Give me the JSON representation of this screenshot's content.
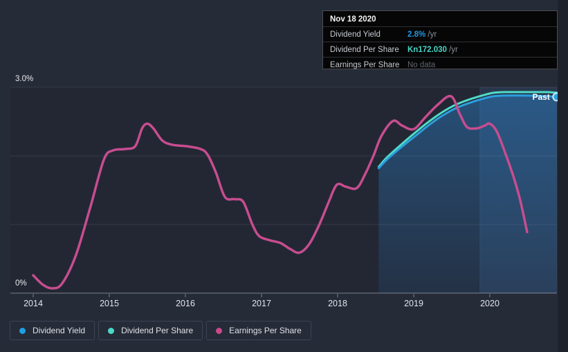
{
  "panel": {
    "background_color": "#262b38",
    "outside_edge_color": "#1e222b"
  },
  "tooltip": {
    "date": "Nov 18 2020",
    "rows": [
      {
        "label": "Dividend Yield",
        "value": "2.8%",
        "suffix": " /yr",
        "value_color": "#2395e0"
      },
      {
        "label": "Dividend Per Share",
        "value": "Kn172.030",
        "suffix": " /yr",
        "value_color": "#45d6c5"
      },
      {
        "label": "Earnings Per Share",
        "value": "No data",
        "suffix": "",
        "value_color": "#5f666e"
      }
    ]
  },
  "legend": {
    "items": [
      {
        "label": "Dividend Yield",
        "color": "#1e9ee3"
      },
      {
        "label": "Dividend Per Share",
        "color": "#4ad9c8"
      },
      {
        "label": "Earnings Per Share",
        "color": "#c9498d"
      }
    ]
  },
  "chart_data": {
    "type": "line",
    "title": "Dividend yield, dividend per share and earnings per share history",
    "value_scale": "values are plotted positions on the 0%–3.0% dividend-yield axis (per-share series normalized)",
    "past_label": "Past",
    "x_axis": {
      "min": 2013.7,
      "max": 2020.88,
      "ticks": [
        {
          "value": 2014,
          "label": "2014"
        },
        {
          "value": 2015,
          "label": "2015"
        },
        {
          "value": 2016,
          "label": "2016"
        },
        {
          "value": 2017,
          "label": "2017"
        },
        {
          "value": 2018,
          "label": "2018"
        },
        {
          "value": 2019,
          "label": "2019"
        },
        {
          "value": 2020,
          "label": "2020"
        }
      ]
    },
    "y_axis": {
      "min": 0,
      "max": 3.0,
      "top_label": "3.0%",
      "bottom_label": "0%",
      "gridlines_percent": [
        1.0,
        2.0,
        3.0
      ]
    },
    "highlight_band_x": [
      2019.87,
      2020.88
    ],
    "series": [
      {
        "name": "Dividend Yield",
        "color": "#2b9fde",
        "area": true,
        "end_marker": true,
        "end_value_label": "2.8% /yr",
        "x": [
          2018.54,
          2018.65,
          2018.84,
          2019.02,
          2019.2,
          2019.38,
          2019.56,
          2019.75,
          2019.93,
          2020.05,
          2020.2,
          2020.47,
          2020.75,
          2020.88
        ],
        "values": [
          1.82,
          1.95,
          2.13,
          2.29,
          2.45,
          2.59,
          2.7,
          2.78,
          2.84,
          2.87,
          2.88,
          2.88,
          2.87,
          2.86
        ]
      },
      {
        "name": "Dividend Per Share",
        "color": "#4fdcc9",
        "area": false,
        "end_marker": false,
        "end_value_label": "Kn172.030 /yr",
        "x": [
          2018.54,
          2018.65,
          2018.84,
          2019.02,
          2019.2,
          2019.38,
          2019.56,
          2019.75,
          2019.93,
          2020.05,
          2020.2,
          2020.47,
          2020.75,
          2020.88
        ],
        "values": [
          1.84,
          1.98,
          2.17,
          2.34,
          2.5,
          2.64,
          2.75,
          2.83,
          2.89,
          2.92,
          2.93,
          2.93,
          2.93,
          2.92
        ]
      },
      {
        "name": "Earnings Per Share",
        "color": "#c74d8f",
        "area": false,
        "end_marker": false,
        "end_value_label": "No data",
        "x": [
          2014.0,
          2014.13,
          2014.25,
          2014.38,
          2014.56,
          2014.75,
          2014.93,
          2015.05,
          2015.2,
          2015.34,
          2015.43,
          2015.5,
          2015.58,
          2015.7,
          2015.84,
          2016.02,
          2016.2,
          2016.29,
          2016.4,
          2016.52,
          2016.65,
          2016.76,
          2016.88,
          2016.97,
          2017.11,
          2017.25,
          2017.38,
          2017.5,
          2017.63,
          2017.76,
          2017.88,
          2017.99,
          2018.11,
          2018.25,
          2018.36,
          2018.47,
          2018.58,
          2018.73,
          2018.85,
          2019.0,
          2019.15,
          2019.31,
          2019.49,
          2019.61,
          2019.7,
          2019.82,
          2019.93,
          2020.0,
          2020.09,
          2020.2,
          2020.31,
          2020.4,
          2020.49
        ],
        "values": [
          0.26,
          0.12,
          0.07,
          0.14,
          0.55,
          1.25,
          1.95,
          2.08,
          2.1,
          2.14,
          2.4,
          2.47,
          2.4,
          2.22,
          2.16,
          2.14,
          2.1,
          2.02,
          1.76,
          1.4,
          1.37,
          1.33,
          1.0,
          0.83,
          0.77,
          0.73,
          0.64,
          0.59,
          0.72,
          1.0,
          1.32,
          1.58,
          1.55,
          1.53,
          1.73,
          2.0,
          2.3,
          2.51,
          2.44,
          2.39,
          2.56,
          2.74,
          2.87,
          2.6,
          2.42,
          2.4,
          2.44,
          2.47,
          2.36,
          2.05,
          1.7,
          1.35,
          0.89
        ]
      }
    ]
  }
}
